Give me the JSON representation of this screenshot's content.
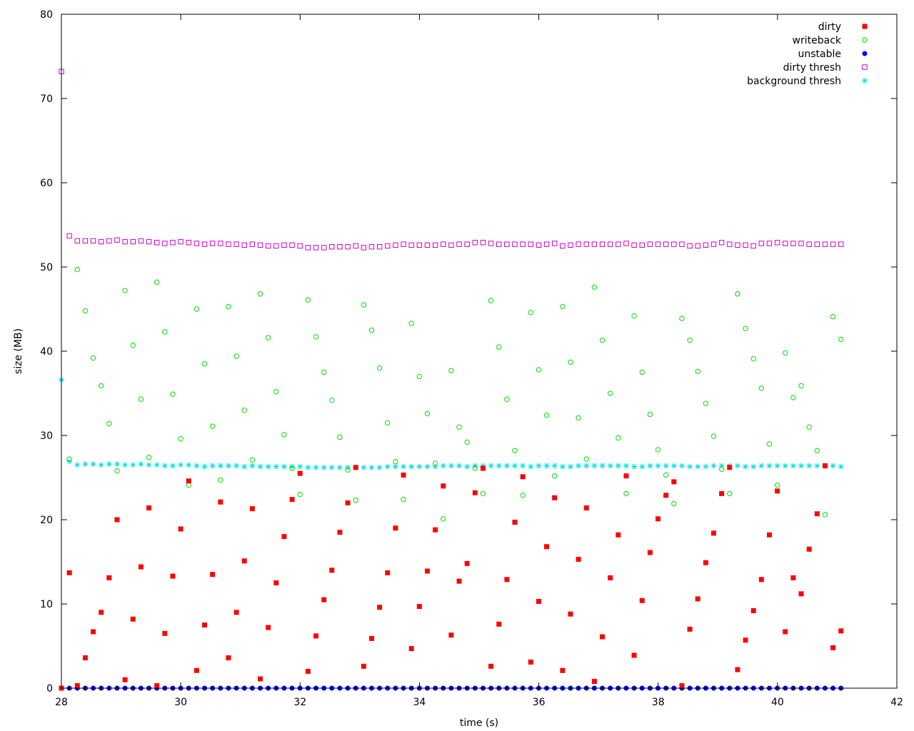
{
  "chart_data": {
    "type": "scatter",
    "title": "",
    "xlabel": "time (s)",
    "ylabel": "size (MB)",
    "xlim": [
      28,
      42
    ],
    "ylim": [
      0,
      80
    ],
    "xticks": [
      28,
      30,
      32,
      34,
      36,
      38,
      40,
      42
    ],
    "yticks": [
      0,
      10,
      20,
      30,
      40,
      50,
      60,
      70,
      80
    ],
    "grid": false,
    "legend_position": "top-right",
    "x_start": 28.0,
    "x_step": 0.1333,
    "series": [
      {
        "name": "dirty",
        "marker": "filled-square",
        "color": "#ff0000",
        "values": [
          0,
          13.7,
          0.3,
          3.6,
          6.7,
          9.0,
          13.1,
          20.0,
          1.0,
          8.2,
          14.4,
          21.4,
          0.3,
          6.5,
          13.3,
          18.9,
          24.6,
          2.1,
          7.5,
          13.5,
          22.1,
          3.6,
          9.0,
          15.1,
          21.3,
          1.1,
          7.2,
          12.5,
          18.0,
          22.4,
          25.5,
          2.0,
          6.2,
          10.5,
          14.0,
          18.5,
          22.0,
          26.2,
          2.6,
          5.9,
          9.6,
          13.7,
          19.0,
          25.3,
          4.7,
          9.7,
          13.9,
          18.8,
          24.0,
          6.3,
          12.7,
          14.8,
          23.2,
          26.1,
          2.6,
          7.6,
          12.9,
          19.7,
          25.1,
          3.1,
          10.3,
          16.8,
          22.6,
          2.1,
          8.8,
          15.3,
          21.4,
          0.8,
          6.1,
          13.1,
          18.2,
          25.2,
          3.9,
          10.4,
          16.1,
          20.1,
          22.9,
          24.5,
          0.3,
          7.0,
          10.6,
          14.9,
          18.4,
          23.1,
          26.2,
          2.2,
          5.7,
          9.2,
          12.9,
          18.2,
          23.4,
          6.7,
          13.1,
          11.2,
          16.5,
          20.7,
          26.4,
          4.8,
          6.8
        ]
      },
      {
        "name": "writeback",
        "marker": "open-circle",
        "color": "#00e000",
        "values": [
          0,
          27.2,
          49.7,
          44.8,
          39.2,
          35.9,
          31.4,
          25.8,
          47.2,
          40.7,
          34.3,
          27.4,
          48.2,
          42.3,
          34.9,
          29.6,
          24.1,
          45.0,
          38.5,
          31.1,
          24.7,
          45.3,
          39.4,
          33.0,
          27.1,
          46.8,
          41.6,
          35.2,
          30.1,
          26.1,
          23.0,
          46.1,
          41.7,
          37.5,
          34.2,
          29.8,
          25.9,
          22.3,
          45.5,
          42.5,
          38.0,
          31.5,
          26.9,
          22.4,
          43.3,
          37.0,
          32.6,
          26.7,
          20.1,
          37.7,
          31.0,
          29.2,
          26.1,
          23.1,
          46.0,
          40.5,
          34.3,
          28.2,
          22.9,
          44.6,
          37.8,
          32.4,
          25.2,
          45.3,
          38.7,
          32.1,
          27.2,
          47.6,
          41.3,
          35.0,
          29.7,
          23.1,
          44.2,
          37.5,
          32.5,
          28.3,
          25.3,
          21.9,
          43.9,
          41.3,
          37.6,
          33.8,
          29.9,
          26.0,
          23.1,
          46.8,
          42.7,
          39.1,
          35.6,
          29.0,
          24.1,
          39.8,
          34.5,
          35.9,
          31.0,
          28.2,
          20.6,
          44.1,
          41.4
        ]
      },
      {
        "name": "unstable",
        "marker": "filled-circle",
        "color": "#0000ee",
        "values": [
          0,
          0,
          0,
          0,
          0,
          0,
          0,
          0,
          0,
          0,
          0,
          0,
          0,
          0,
          0,
          0,
          0,
          0,
          0,
          0,
          0,
          0,
          0,
          0,
          0,
          0,
          0,
          0,
          0,
          0,
          0,
          0,
          0,
          0,
          0,
          0,
          0,
          0,
          0,
          0,
          0,
          0,
          0,
          0,
          0,
          0,
          0,
          0,
          0,
          0,
          0,
          0,
          0,
          0,
          0,
          0,
          0,
          0,
          0,
          0,
          0,
          0,
          0,
          0,
          0,
          0,
          0,
          0,
          0,
          0,
          0,
          0,
          0,
          0,
          0,
          0,
          0,
          0,
          0,
          0,
          0,
          0,
          0,
          0,
          0,
          0,
          0,
          0,
          0,
          0,
          0,
          0,
          0,
          0,
          0,
          0,
          0,
          0,
          0
        ]
      },
      {
        "name": "dirty thresh",
        "marker": "open-square",
        "color": "#cc00cc",
        "values": [
          73.2,
          53.7,
          53.1,
          53.1,
          53.1,
          53.0,
          53.1,
          53.2,
          53.0,
          53.0,
          53.1,
          53.0,
          52.9,
          52.8,
          52.9,
          53.0,
          52.9,
          52.8,
          52.7,
          52.8,
          52.8,
          52.7,
          52.7,
          52.6,
          52.7,
          52.6,
          52.5,
          52.5,
          52.6,
          52.6,
          52.5,
          52.3,
          52.3,
          52.3,
          52.4,
          52.4,
          52.4,
          52.5,
          52.3,
          52.4,
          52.4,
          52.5,
          52.6,
          52.7,
          52.6,
          52.6,
          52.6,
          52.6,
          52.7,
          52.6,
          52.7,
          52.7,
          52.9,
          52.9,
          52.8,
          52.7,
          52.7,
          52.7,
          52.7,
          52.7,
          52.6,
          52.7,
          52.8,
          52.5,
          52.6,
          52.7,
          52.7,
          52.7,
          52.7,
          52.7,
          52.7,
          52.8,
          52.6,
          52.6,
          52.7,
          52.7,
          52.7,
          52.7,
          52.7,
          52.5,
          52.5,
          52.6,
          52.7,
          52.9,
          52.7,
          52.6,
          52.6,
          52.5,
          52.8,
          52.8,
          52.9,
          52.8,
          52.8,
          52.8,
          52.7,
          52.7,
          52.7,
          52.7,
          52.7
        ]
      },
      {
        "name": "background thresh",
        "marker": "star",
        "color": "#00e0e0",
        "values": [
          36.6,
          26.9,
          26.5,
          26.6,
          26.6,
          26.5,
          26.6,
          26.6,
          26.5,
          26.5,
          26.6,
          26.5,
          26.5,
          26.4,
          26.4,
          26.5,
          26.5,
          26.4,
          26.3,
          26.4,
          26.4,
          26.4,
          26.4,
          26.3,
          26.4,
          26.3,
          26.3,
          26.3,
          26.3,
          26.3,
          26.3,
          26.2,
          26.2,
          26.2,
          26.2,
          26.2,
          26.2,
          26.2,
          26.2,
          26.2,
          26.2,
          26.3,
          26.3,
          26.3,
          26.3,
          26.3,
          26.3,
          26.3,
          26.4,
          26.4,
          26.4,
          26.3,
          26.4,
          26.4,
          26.4,
          26.4,
          26.4,
          26.4,
          26.4,
          26.3,
          26.4,
          26.4,
          26.4,
          26.3,
          26.3,
          26.4,
          26.4,
          26.4,
          26.4,
          26.4,
          26.4,
          26.4,
          26.3,
          26.3,
          26.4,
          26.4,
          26.4,
          26.4,
          26.4,
          26.3,
          26.3,
          26.3,
          26.4,
          26.4,
          26.4,
          26.4,
          26.3,
          26.3,
          26.4,
          26.4,
          26.4,
          26.4,
          26.4,
          26.4,
          26.4,
          26.4,
          26.4,
          26.4,
          26.3
        ]
      }
    ]
  }
}
